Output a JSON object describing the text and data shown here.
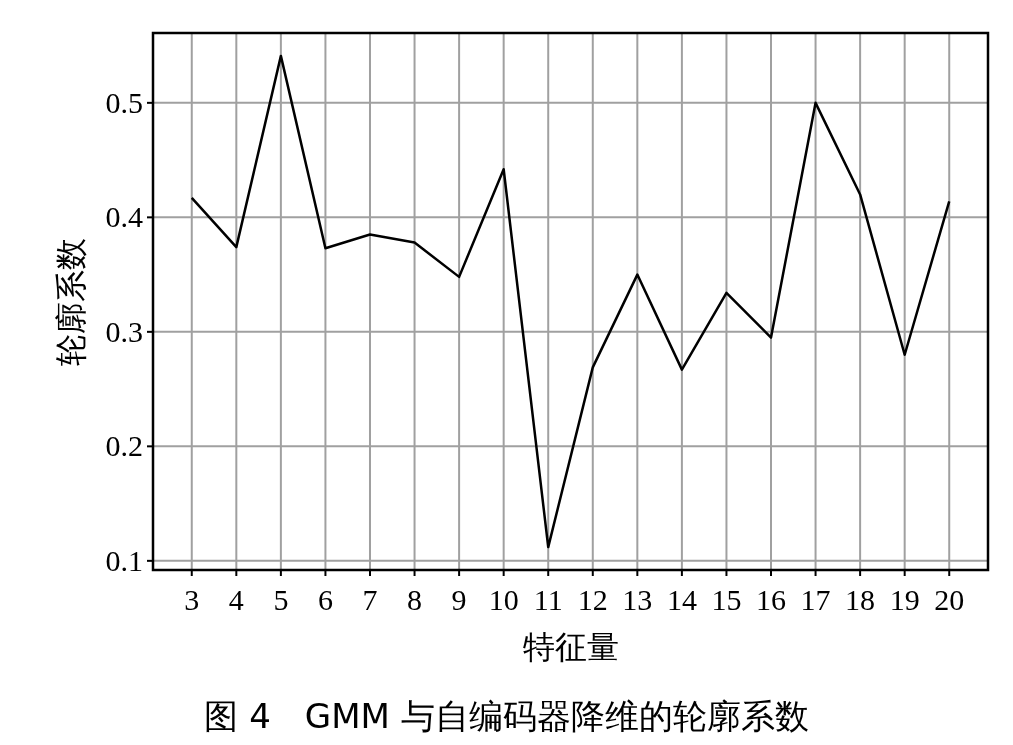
{
  "chart_data": {
    "type": "line",
    "title": "图 4　GMM 与自编码器降维的轮廓系数",
    "xlabel": "特征量",
    "ylabel": "轮廓系数",
    "categories": [
      "3",
      "4",
      "5",
      "6",
      "7",
      "8",
      "9",
      "10",
      "11",
      "12",
      "13",
      "14",
      "15",
      "16",
      "17",
      "18",
      "19",
      "20"
    ],
    "values": [
      0.417,
      0.374,
      0.541,
      0.373,
      0.385,
      0.378,
      0.348,
      0.442,
      0.112,
      0.269,
      0.35,
      0.267,
      0.334,
      0.295,
      0.5,
      0.42,
      0.28,
      0.414
    ],
    "color": "#000000",
    "ylim": [
      0.092,
      0.561
    ],
    "yticks": [
      0.1,
      0.2,
      0.3,
      0.4,
      0.5
    ],
    "grid": true
  }
}
